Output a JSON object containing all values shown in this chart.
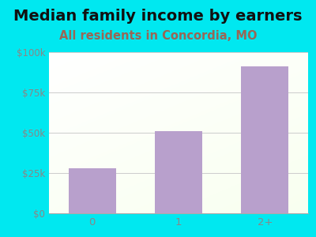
{
  "title": "Median family income by earners",
  "subtitle": "All residents in Concordia, MO",
  "categories": [
    "0",
    "1",
    "2+"
  ],
  "values": [
    28000,
    51000,
    91000
  ],
  "bar_color": "#b8a0cc",
  "title_fontsize": 14,
  "subtitle_fontsize": 10.5,
  "subtitle_color": "#996655",
  "title_color": "#111111",
  "bg_outer": "#00e8f0",
  "ylim": [
    0,
    100000
  ],
  "yticks": [
    0,
    25000,
    50000,
    75000,
    100000
  ],
  "ytick_labels": [
    "$0",
    "$25k",
    "$50k",
    "$75k",
    "$100k"
  ],
  "grid_color": "#cccccc",
  "axis_color": "#aaaaaa",
  "tick_color": "#888888",
  "bar_width": 0.55
}
